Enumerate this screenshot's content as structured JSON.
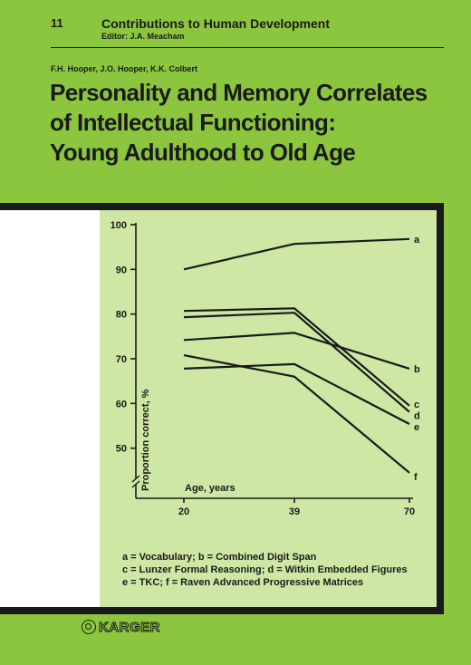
{
  "series": {
    "number": "11",
    "title": "Contributions to Human Development",
    "editor": "Editor: J.A. Meacham"
  },
  "authors": "F.H. Hooper, J.O. Hooper, K.K. Colbert",
  "title_lines": [
    "Personality and Memory Correlates",
    "of Intellectual Functioning:",
    "Young Adulthood to Old Age"
  ],
  "legend_lines": [
    "a = Vocabulary; b = Combined Digit Span",
    "c = Lunzer Formal Reasoning; d = Witkin Embedded Figures",
    "e = TKC; f = Raven Advanced Progressive Matrices"
  ],
  "publisher": "KARGER",
  "colors": {
    "background": "#8cc63f",
    "panel": "#cfe7a4",
    "ink": "#1a1a1a"
  },
  "chart_data": {
    "type": "line",
    "x": [
      20,
      39,
      70
    ],
    "x_tick_labels": [
      "20",
      "39",
      "70"
    ],
    "xlabel": "Age, years",
    "ylabel": "Proportion correct, %",
    "ylim": [
      40,
      100
    ],
    "y_ticks": [
      50,
      60,
      70,
      80,
      90,
      100
    ],
    "y_tick_labels": [
      "50",
      "60",
      "70",
      "80",
      "90",
      "100"
    ],
    "grid": false,
    "series": [
      {
        "name": "a",
        "values": [
          90,
          95.7,
          96.8
        ]
      },
      {
        "name": "b",
        "values": [
          74.2,
          75.8,
          67.8
        ]
      },
      {
        "name": "c",
        "values": [
          80.7,
          81.3,
          59.5
        ]
      },
      {
        "name": "d",
        "values": [
          79.3,
          80.3,
          58.1
        ]
      },
      {
        "name": "e",
        "values": [
          67.8,
          68.8,
          55.4
        ]
      },
      {
        "name": "f",
        "values": [
          70.8,
          66,
          44.5
        ]
      }
    ]
  }
}
